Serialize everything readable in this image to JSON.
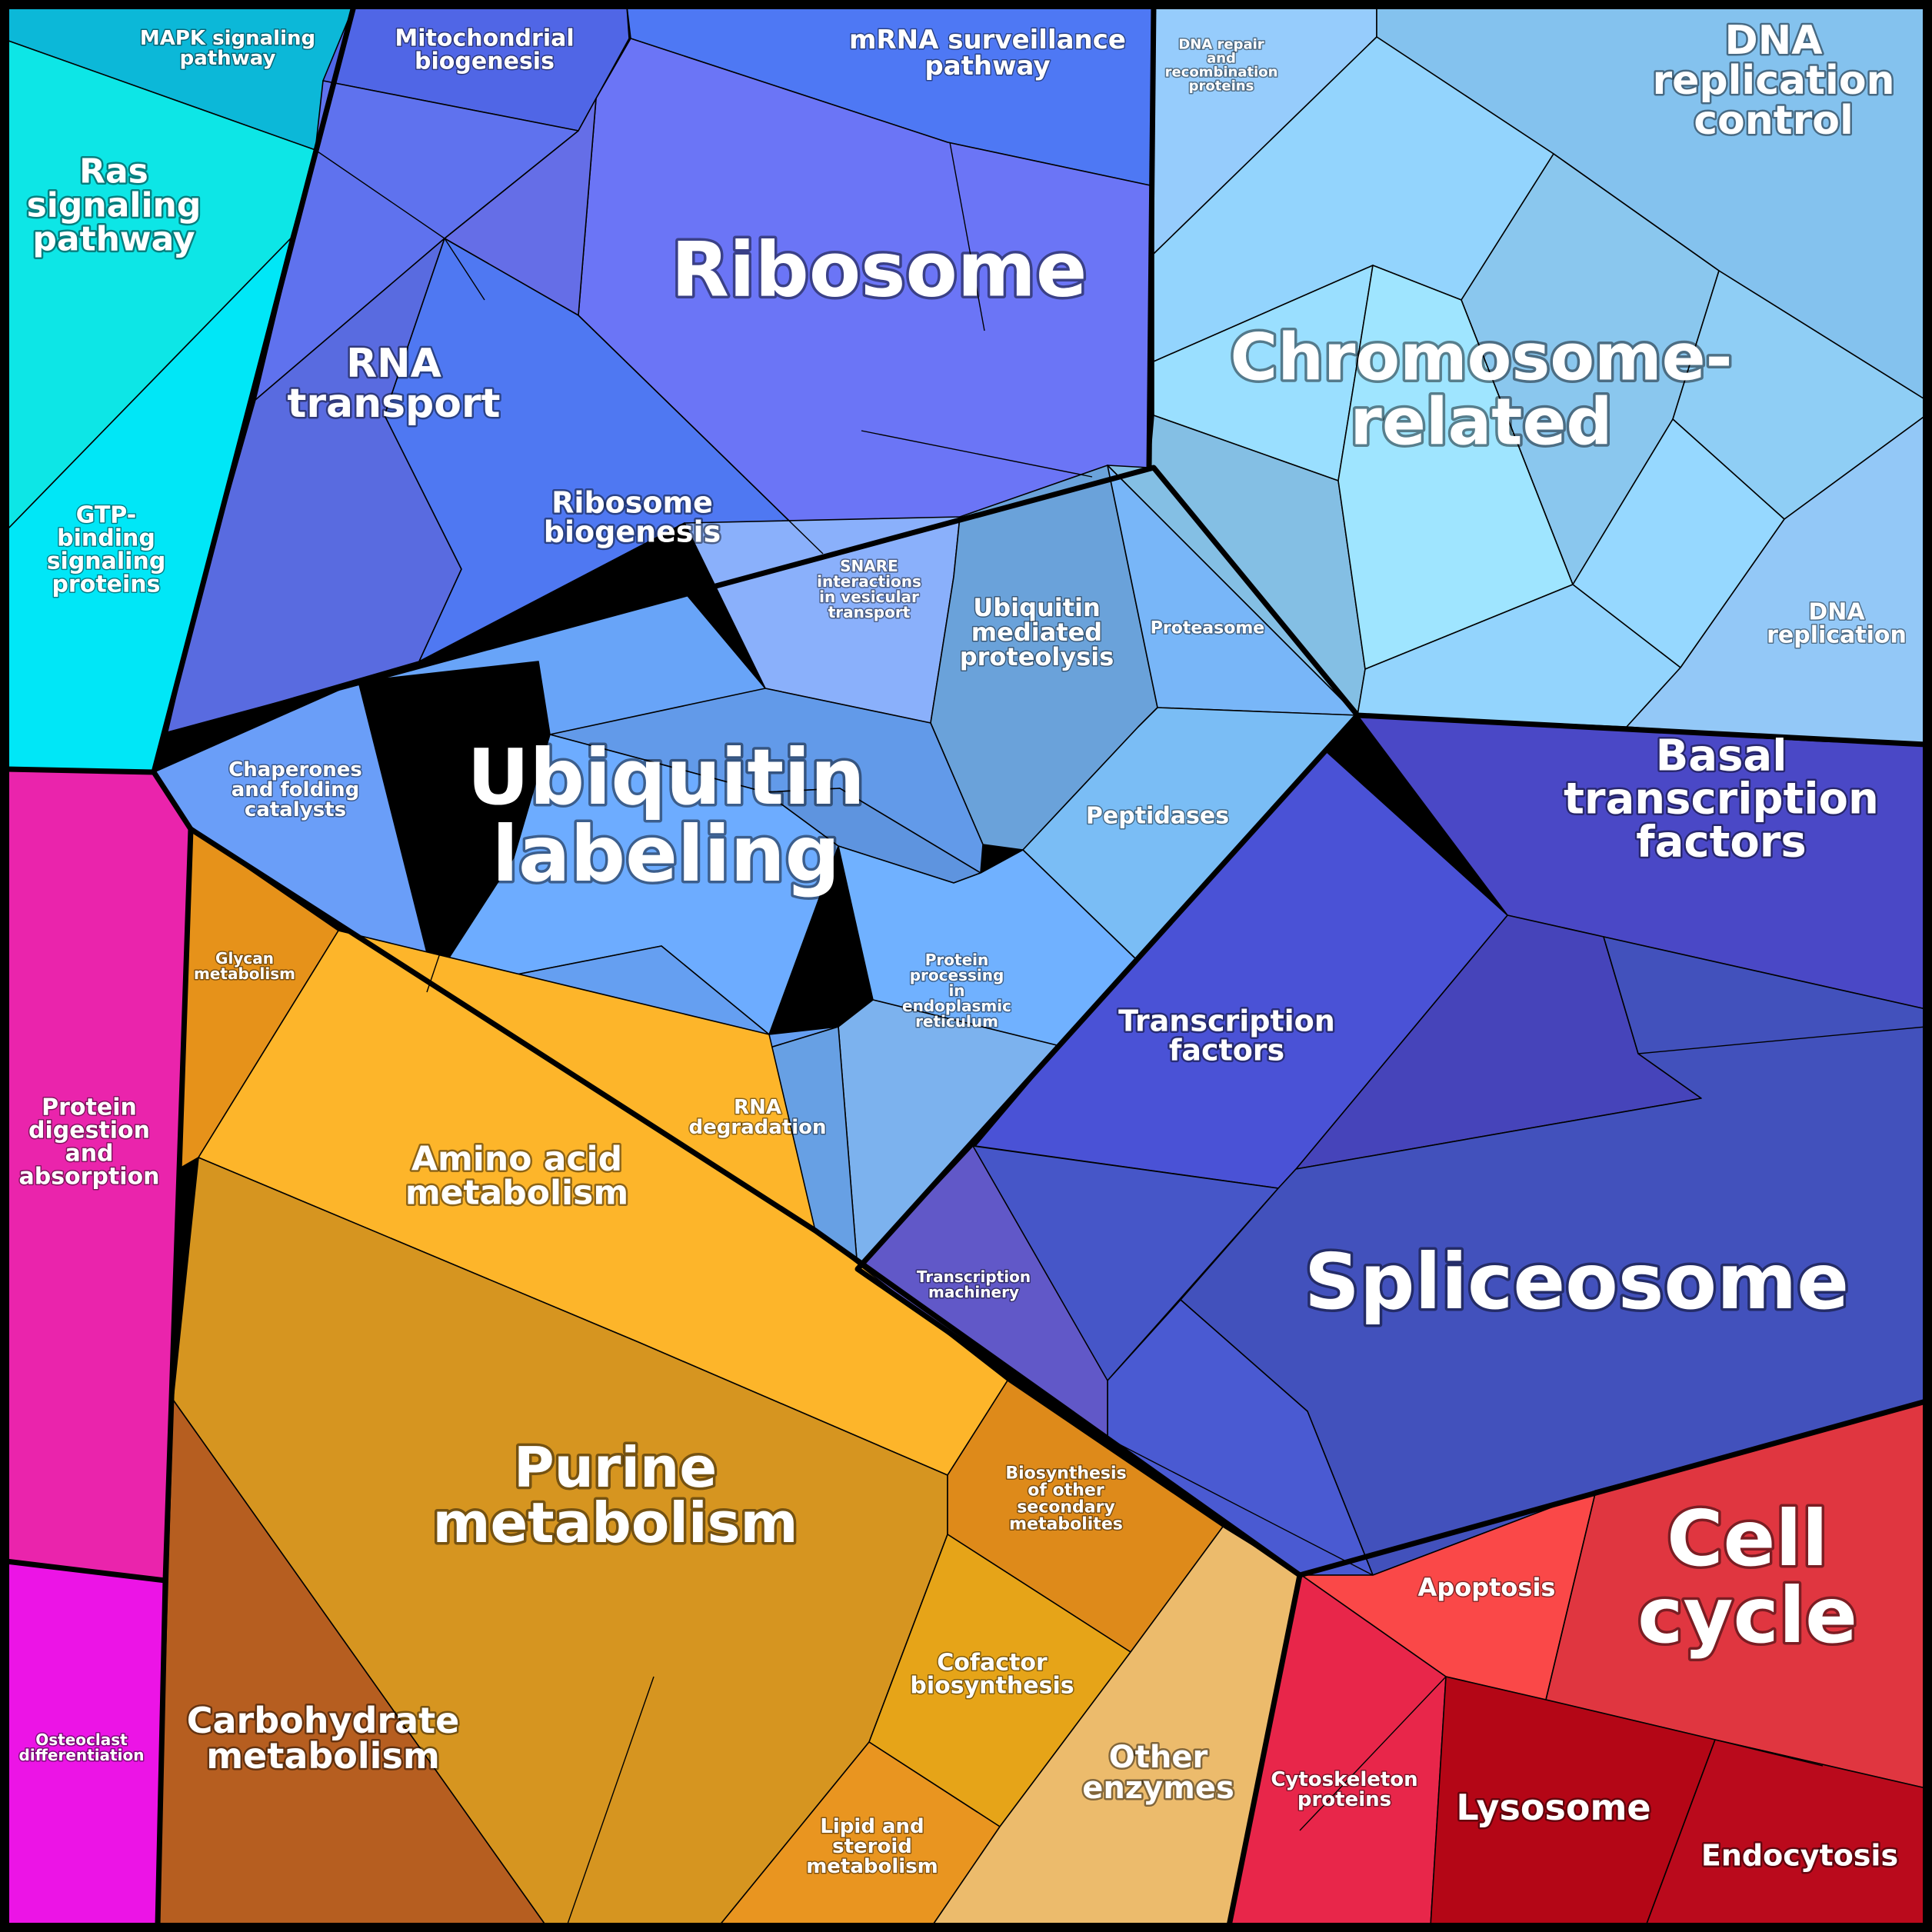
{
  "groups": [
    {
      "id": "ras",
      "label": "Ras signaling pathway",
      "color": "#0de6e6"
    },
    {
      "id": "mapk",
      "label": "MAPK signaling pathway",
      "color": "#0cb8d8"
    },
    {
      "id": "gtp",
      "label": "GTP-binding signaling proteins",
      "color": "#00e7f7"
    },
    {
      "id": "mito",
      "label": "Mitochondrial biogenesis",
      "color": "#5066e6"
    },
    {
      "id": "mrna",
      "label": "mRNA surveillance pathway",
      "color": "#4e78f4"
    },
    {
      "id": "ribosome",
      "label": "Ribosome",
      "color": "#6b75f6"
    },
    {
      "id": "rnatransport",
      "label": "RNA transport",
      "color": "#5f72ee"
    },
    {
      "id": "ribobio",
      "label": "Ribosome biogenesis",
      "color": "#4f78f2"
    },
    {
      "id": "dnarepair",
      "label": "DNA repair and recombination proteins",
      "color": "#96ccfc"
    },
    {
      "id": "dnarepctl",
      "label": "DNA replication control",
      "color": "#84c2ee"
    },
    {
      "id": "chromosome",
      "label": "Chromosome-related",
      "color": "#93d4fd"
    },
    {
      "id": "dnarep",
      "label": "DNA replication",
      "color": "#93c8f7"
    },
    {
      "id": "snare",
      "label": "SNARE interactions in vesicular transport",
      "color": "#8ab0fb"
    },
    {
      "id": "ubmed",
      "label": "Ubiquitin mediated proteolysis",
      "color": "#6aa2da"
    },
    {
      "id": "proteasome",
      "label": "Proteasome",
      "color": "#78b6f8"
    },
    {
      "id": "ubiquitin",
      "label": "Ubiquitin labeling",
      "color": "#68a4f8"
    },
    {
      "id": "chaperones",
      "label": "Chaperones and folding catalysts",
      "color": "#6a9ef8"
    },
    {
      "id": "peptidases",
      "label": "Peptidases",
      "color": "#7abdf5"
    },
    {
      "id": "proteinproc",
      "label": "Protein processing in endoplasmic reticulum",
      "color": "#7cb2ee"
    },
    {
      "id": "rnadeg",
      "label": "RNA degradation",
      "color": "#67a0e4"
    },
    {
      "id": "basal",
      "label": "Basal transcription factors",
      "color": "#4a48c6"
    },
    {
      "id": "tf",
      "label": "Transcription factors",
      "color": "#4a52d6"
    },
    {
      "id": "spliceosome",
      "label": "Spliceosome",
      "color": "#4656c8"
    },
    {
      "id": "tmachinery",
      "label": "Transcription machinery",
      "color": "#6158c8"
    },
    {
      "id": "protdig",
      "label": "Protein digestion and absorption",
      "color": "#ea24ac"
    },
    {
      "id": "osteo",
      "label": "Osteoclast differentiation",
      "color": "#ec14e6"
    },
    {
      "id": "glycan",
      "label": "Glycan metabolism",
      "color": "#e6921a"
    },
    {
      "id": "aminoacid",
      "label": "Amino acid metabolism",
      "color": "#fdb52a"
    },
    {
      "id": "purine",
      "label": "Purine metabolism",
      "color": "#d69520"
    },
    {
      "id": "carb",
      "label": "Carbohydrate metabolism",
      "color": "#b65e20"
    },
    {
      "id": "biosynth",
      "label": "Biosynthesis of other secondary metabolites",
      "color": "#de8a1a"
    },
    {
      "id": "cofactor",
      "label": "Cofactor biosynthesis",
      "color": "#e6a418"
    },
    {
      "id": "lipid",
      "label": "Lipid and steroid metabolism",
      "color": "#e99520"
    },
    {
      "id": "other",
      "label": "Other enzymes",
      "color": "#ecbb6c"
    },
    {
      "id": "apoptosis",
      "label": "Apoptosis",
      "color": "#fa4848"
    },
    {
      "id": "cellcycle",
      "label": "Cell cycle",
      "color": "#e03640"
    },
    {
      "id": "cytoskeleton",
      "label": "Cytoskeleton proteins",
      "color": "#e8264a"
    },
    {
      "id": "lysosome",
      "label": "Lysosome",
      "color": "#b40616"
    },
    {
      "id": "endocytosis",
      "label": "Endocytosis",
      "color": "#ba0a1c"
    }
  ]
}
